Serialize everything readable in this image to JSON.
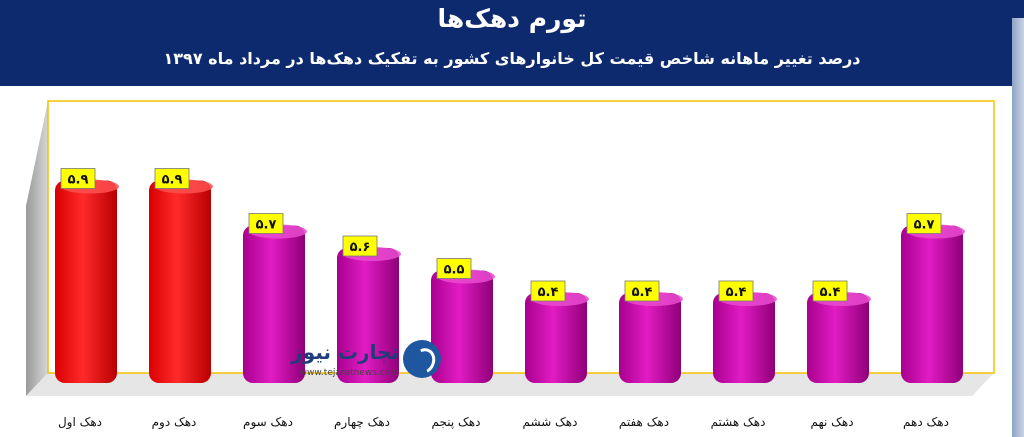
{
  "header": {
    "title": "تورم دهک‌ها",
    "subtitle": "درصد تغییر ماهانه شاخص قیمت کل خانوارهای کشور به تفکیک دهک‌ها در مرداد ماه ۱۳۹۷"
  },
  "logo": {
    "text": "تجارت نیوز",
    "url": "www.tejaratnews.com"
  },
  "colors": {
    "header_bg": "#0d2a6e",
    "highlight_bar": "#ff1a1a",
    "normal_bar": "#cc00aa",
    "label_box": "#ffff00",
    "frame": "#f2c200"
  },
  "chart_data": {
    "type": "bar",
    "categories": [
      "دهک اول",
      "دهک دوم",
      "دهک سوم",
      "دهک چهارم",
      "دهک پنجم",
      "دهک ششم",
      "دهک هفتم",
      "دهک هشتم",
      "دهک نهم",
      "دهک دهم"
    ],
    "values": [
      5.9,
      5.9,
      5.7,
      5.6,
      5.5,
      5.4,
      5.4,
      5.4,
      5.4,
      5.7
    ],
    "value_labels": [
      "۵.۹",
      "۵.۹",
      "۵.۷",
      "۵.۶",
      "۵.۵",
      "۵.۴",
      "۵.۴",
      "۵.۴",
      "۵.۴",
      "۵.۷"
    ],
    "highlighted": [
      0,
      1
    ],
    "grid": false,
    "legend": "none"
  }
}
